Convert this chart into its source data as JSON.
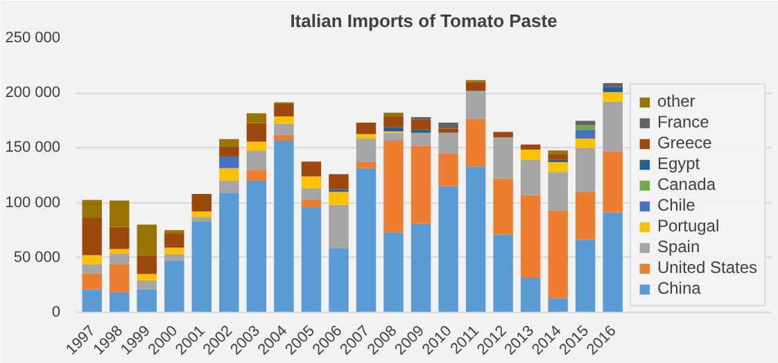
{
  "chart_data": {
    "type": "bar",
    "stacked": true,
    "title": "Italian Imports of Tomato Paste",
    "categories": [
      "1997",
      "1998",
      "1999",
      "2000",
      "2001",
      "2002",
      "2003",
      "2004",
      "2005",
      "2006",
      "2007",
      "2008",
      "2009",
      "2010",
      "2011",
      "2012",
      "2013",
      "2014",
      "2015",
      "2016"
    ],
    "series": [
      {
        "name": "China",
        "color": "#5b9bd5",
        "values": [
          21000,
          18500,
          21000,
          47600,
          82700,
          109000,
          120000,
          156500,
          96000,
          58500,
          131500,
          73000,
          81000,
          115000,
          133000,
          71000,
          31500,
          13000,
          66500,
          91000
        ]
      },
      {
        "name": "United States",
        "color": "#ed7d31",
        "values": [
          14500,
          25500,
          0,
          0,
          0,
          0,
          10000,
          5200,
          7000,
          0,
          5500,
          83500,
          71000,
          30000,
          43600,
          51000,
          75500,
          80000,
          43500,
          56000
        ]
      },
      {
        "name": "Spain",
        "color": "#a5a5a5",
        "values": [
          8500,
          9600,
          8000,
          5400,
          4300,
          11000,
          17600,
          10300,
          10000,
          39500,
          21500,
          7200,
          11700,
          18700,
          25400,
          37700,
          32000,
          35000,
          39600,
          45000
        ]
      },
      {
        "name": "Portugal",
        "color": "#ffc000",
        "values": [
          8100,
          4100,
          6000,
          6000,
          5000,
          11500,
          8000,
          6600,
          11000,
          12000,
          4000,
          1300,
          0,
          0,
          0,
          0,
          9400,
          9000,
          8900,
          8800
        ]
      },
      {
        "name": "Chile",
        "color": "#4472c4",
        "values": [
          0,
          0,
          0,
          0,
          0,
          10500,
          0,
          0,
          0,
          0,
          0,
          0,
          0,
          0,
          0,
          0,
          0,
          0,
          8000,
          0
        ]
      },
      {
        "name": "Canada",
        "color": "#70ad47",
        "values": [
          0,
          0,
          0,
          0,
          0,
          0,
          0,
          0,
          0,
          0,
          0,
          0,
          0,
          0,
          0,
          0,
          0,
          0,
          4100,
          0
        ]
      },
      {
        "name": "Egypt",
        "color": "#255e91",
        "values": [
          0,
          0,
          0,
          0,
          0,
          0,
          0,
          0,
          0,
          2000,
          0,
          4000,
          2800,
          0,
          0,
          0,
          0,
          2000,
          0,
          4800
        ]
      },
      {
        "name": "Greece",
        "color": "#9e480e",
        "values": [
          34400,
          20300,
          17000,
          13000,
          16000,
          9000,
          17000,
          11400,
          13500,
          14000,
          10500,
          9600,
          9500,
          4000,
          7700,
          4800,
          4600,
          5000,
          0,
          0
        ]
      },
      {
        "name": "France",
        "color": "#636363",
        "values": [
          0,
          0,
          0,
          0,
          0,
          0,
          0,
          0,
          0,
          0,
          0,
          0,
          2000,
          5300,
          0,
          0,
          0,
          0,
          4000,
          3400
        ]
      },
      {
        "name": "other",
        "color": "#997300",
        "values": [
          16000,
          24000,
          28000,
          3000,
          0,
          7000,
          8900,
          1500,
          0,
          0,
          0,
          3400,
          0,
          0,
          2000,
          0,
          0,
          3600,
          0,
          0
        ]
      }
    ],
    "ylim": [
      0,
      250000
    ],
    "yticks": [
      {
        "value": 0,
        "label": "0"
      },
      {
        "value": 50000,
        "label": "50 000"
      },
      {
        "value": 100000,
        "label": "100 000"
      },
      {
        "value": 150000,
        "label": "150 000"
      },
      {
        "value": 200000,
        "label": "200 000"
      },
      {
        "value": 250000,
        "label": "250 000"
      }
    ],
    "grid": "y",
    "legend": "right"
  }
}
